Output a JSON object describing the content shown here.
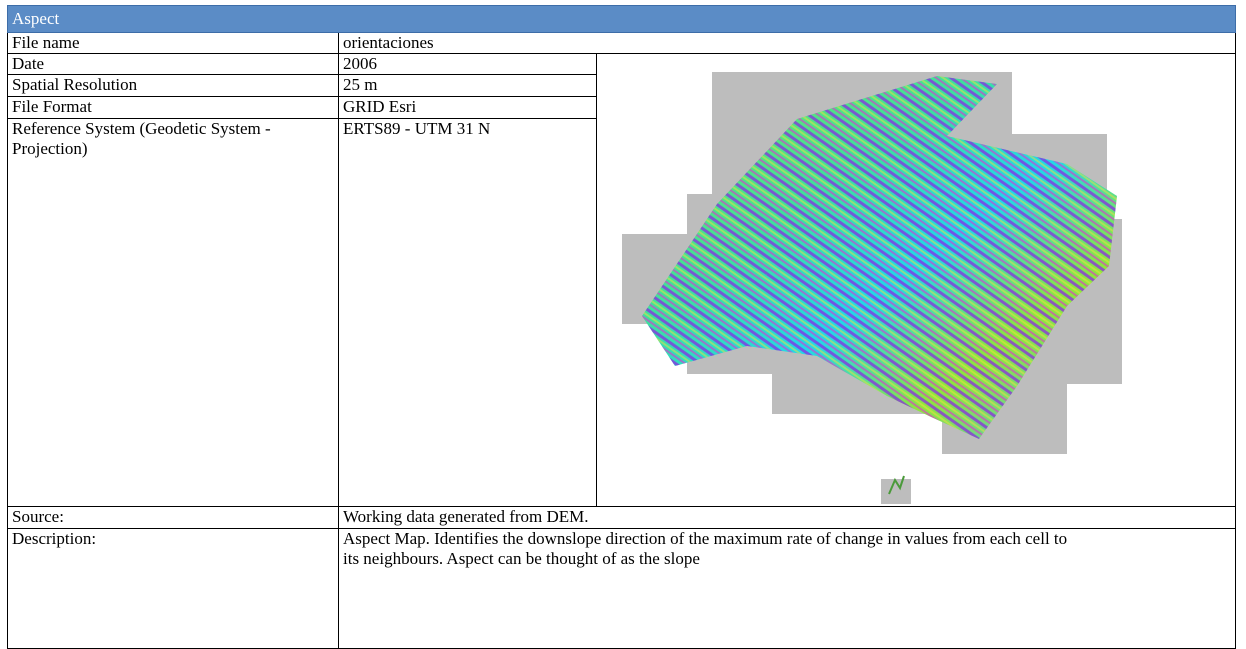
{
  "header": {
    "title": "Aspect"
  },
  "table": {
    "rows": [
      [
        "File name",
        "orientaciones"
      ],
      [
        "Date",
        "2006"
      ],
      [
        "Spatial Resolution",
        "25 m"
      ],
      [
        "File Format",
        "GRID Esri"
      ],
      [
        "Reference System (Geodetic System -Projection)",
        "ERTS89 - UTM 31 N"
      ],
      [
        "Source:",
        "Working data generated from DEM."
      ],
      [
        "Description:",
        "Aspect Map. Identifies the downslope direction of the maximum rate of change in values from each cell to its neighbours. Aspect can be thought of as the slope"
      ]
    ]
  }
}
